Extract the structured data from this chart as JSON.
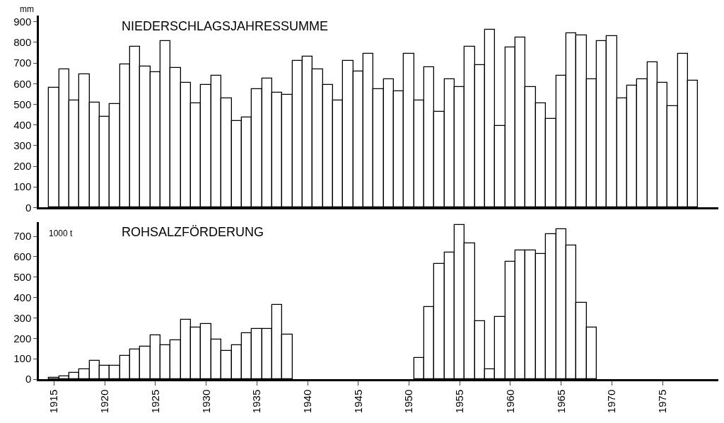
{
  "chart_data": [
    {
      "type": "bar",
      "title": "NIEDERSCHLAGSJAHRESSUMME",
      "ylabel": "mm",
      "x": [
        1915,
        1916,
        1917,
        1918,
        1919,
        1920,
        1921,
        1922,
        1923,
        1924,
        1925,
        1926,
        1927,
        1928,
        1929,
        1930,
        1931,
        1932,
        1933,
        1934,
        1935,
        1936,
        1937,
        1938,
        1939,
        1940,
        1941,
        1942,
        1943,
        1944,
        1945,
        1946,
        1947,
        1948,
        1949,
        1950,
        1951,
        1952,
        1953,
        1954,
        1955,
        1956,
        1957,
        1958,
        1959,
        1960,
        1961,
        1962,
        1963,
        1964,
        1965,
        1966,
        1967,
        1968,
        1969,
        1970,
        1971,
        1972,
        1973,
        1974,
        1975,
        1976,
        1977,
        1978
      ],
      "values": [
        580,
        670,
        520,
        645,
        510,
        440,
        500,
        695,
        780,
        685,
        655,
        805,
        675,
        605,
        505,
        595,
        640,
        530,
        420,
        435,
        575,
        625,
        555,
        545,
        710,
        730,
        670,
        595,
        520,
        710,
        660,
        745,
        575,
        620,
        565,
        745,
        520,
        680,
        465,
        620,
        585,
        780,
        690,
        860,
        395,
        775,
        825,
        585,
        505,
        430,
        640,
        845,
        835,
        620,
        805,
        830,
        530,
        590,
        620,
        705,
        605,
        490,
        745,
        615
      ],
      "color": "#ffffff",
      "xlim": [
        1913.5,
        1980.5
      ],
      "xticks": [
        1915,
        1920,
        1925,
        1930,
        1935,
        1940,
        1945,
        1950,
        1955,
        1960,
        1965,
        1970,
        1975
      ],
      "ylim": [
        0,
        930
      ],
      "yticks": [
        0,
        100,
        200,
        300,
        400,
        500,
        600,
        700,
        800,
        900
      ],
      "tick_labels": "y"
    },
    {
      "type": "bar",
      "title": "ROHSALZFÖRDERUNG",
      "ylabel": "1000 t",
      "x": [
        1915,
        1916,
        1917,
        1918,
        1919,
        1920,
        1921,
        1922,
        1923,
        1924,
        1925,
        1926,
        1927,
        1928,
        1929,
        1930,
        1931,
        1932,
        1933,
        1934,
        1935,
        1936,
        1937,
        1938,
        1939,
        1940,
        1941,
        1942,
        1943,
        1944,
        1945,
        1946,
        1947,
        1948,
        1949,
        1950,
        1951,
        1952,
        1953,
        1954,
        1955,
        1956,
        1957,
        1958,
        1959,
        1960,
        1961,
        1962,
        1963,
        1964,
        1965,
        1966,
        1967,
        1968
      ],
      "values": [
        8,
        15,
        30,
        50,
        90,
        65,
        65,
        115,
        145,
        160,
        215,
        165,
        190,
        290,
        255,
        270,
        195,
        140,
        165,
        225,
        245,
        245,
        365,
        220,
        null,
        null,
        null,
        null,
        null,
        null,
        null,
        null,
        null,
        null,
        null,
        null,
        105,
        355,
        565,
        620,
        755,
        665,
        285,
        50,
        305,
        575,
        630,
        630,
        615,
        710,
        735,
        655,
        375,
        255
      ],
      "color": "#ffffff",
      "xlim": [
        1913.5,
        1980.5
      ],
      "xticks": [
        1915,
        1920,
        1925,
        1930,
        1935,
        1940,
        1945,
        1950,
        1955,
        1960,
        1965,
        1970,
        1975
      ],
      "ylim": [
        0,
        770
      ],
      "yticks": [
        0,
        100,
        200,
        300,
        400,
        500,
        600,
        700
      ]
    }
  ]
}
